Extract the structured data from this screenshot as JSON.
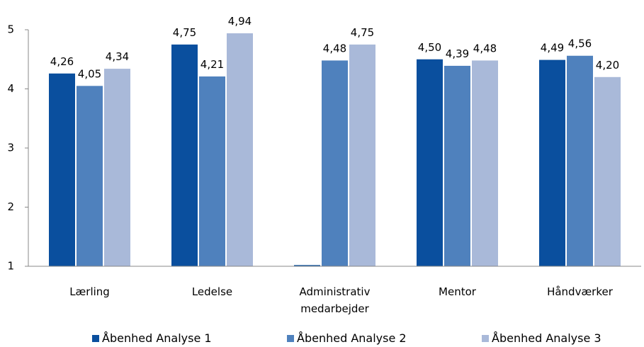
{
  "chart_data": {
    "type": "bar",
    "categories": [
      "Lærling",
      "Ledelse",
      "Administrativ medarbejder",
      "Mentor",
      "Håndværker"
    ],
    "series": [
      {
        "name": "Åbenhed Analyse 1",
        "color": "#0a4f9e",
        "values": [
          4.26,
          4.75,
          1.02,
          4.5,
          4.49
        ],
        "value_labels": [
          "4,26",
          "4,75",
          null,
          "4,50",
          "4,49"
        ]
      },
      {
        "name": "Åbenhed Analyse 2",
        "color": "#4f81bd",
        "values": [
          4.05,
          4.21,
          4.48,
          4.39,
          4.56
        ],
        "value_labels": [
          "4,05",
          "4,21",
          "4,48",
          "4,39",
          "4,56"
        ]
      },
      {
        "name": "Åbenhed Analyse 3",
        "color": "#a9b9d9",
        "values": [
          4.34,
          4.94,
          4.75,
          4.48,
          4.2
        ],
        "value_labels": [
          "4,34",
          "4,94",
          "4,75",
          "4,48",
          "4,20"
        ]
      }
    ],
    "ylim": [
      1,
      5
    ],
    "yticks": [
      1,
      2,
      3,
      4,
      5
    ],
    "legend": "bottom"
  }
}
